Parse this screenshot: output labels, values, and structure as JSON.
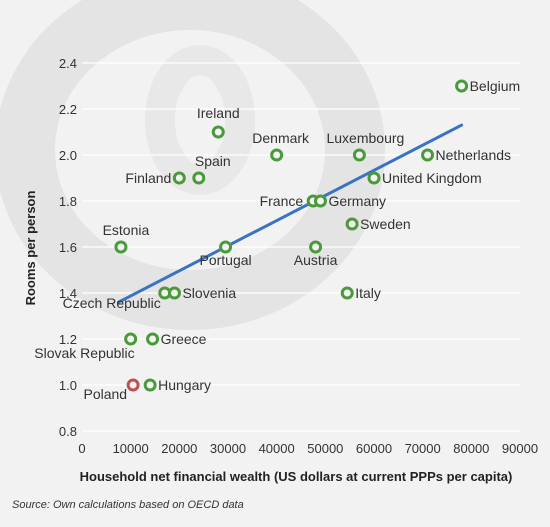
{
  "chart_data": {
    "type": "scatter",
    "title": "",
    "xlabel": "Household net financial wealth (US dollars at current PPPs per capita)",
    "ylabel": "Rooms per person",
    "xlim": [
      0,
      90000
    ],
    "ylim": [
      0.8,
      2.4
    ],
    "x_ticks": [
      0,
      10000,
      20000,
      30000,
      40000,
      50000,
      60000,
      70000,
      80000,
      90000
    ],
    "y_ticks": [
      0.8,
      1.0,
      1.2,
      1.4,
      1.6,
      1.8,
      2.0,
      2.2,
      2.4
    ],
    "grid": true,
    "highlight_color": "#c0504d",
    "point_color": "#4a9a3a",
    "trend_color": "#3b73c4",
    "points": [
      {
        "label": "Belgium",
        "x": 78000,
        "y": 2.3
      },
      {
        "label": "Ireland",
        "x": 28000,
        "y": 2.1
      },
      {
        "label": "Denmark",
        "x": 40000,
        "y": 2.0
      },
      {
        "label": "Luxembourg",
        "x": 57000,
        "y": 2.0
      },
      {
        "label": "Netherlands",
        "x": 71000,
        "y": 2.0
      },
      {
        "label": "Finland",
        "x": 20000,
        "y": 1.9
      },
      {
        "label": "Spain",
        "x": 24000,
        "y": 1.9
      },
      {
        "label": "United Kingdom",
        "x": 60000,
        "y": 1.9
      },
      {
        "label": "France",
        "x": 47500,
        "y": 1.8
      },
      {
        "label": "Germany",
        "x": 49000,
        "y": 1.8
      },
      {
        "label": "Sweden",
        "x": 55500,
        "y": 1.7
      },
      {
        "label": "Estonia",
        "x": 8000,
        "y": 1.6
      },
      {
        "label": "Portugal",
        "x": 29500,
        "y": 1.6
      },
      {
        "label": "Austria",
        "x": 48000,
        "y": 1.6
      },
      {
        "label": "Czech Republic",
        "x": 17000,
        "y": 1.4
      },
      {
        "label": "Slovenia",
        "x": 19000,
        "y": 1.4
      },
      {
        "label": "Italy",
        "x": 54500,
        "y": 1.4
      },
      {
        "label": "Slovak Republic",
        "x": 10000,
        "y": 1.2
      },
      {
        "label": "Greece",
        "x": 14500,
        "y": 1.2
      },
      {
        "label": "Poland",
        "x": 10500,
        "y": 1.0,
        "highlight": true
      },
      {
        "label": "Hungary",
        "x": 14000,
        "y": 1.0
      }
    ],
    "trendline": {
      "x": [
        7500,
        78000
      ],
      "y": [
        1.36,
        2.13
      ]
    }
  },
  "source_note": "Source: Own calculations based on OECD data"
}
